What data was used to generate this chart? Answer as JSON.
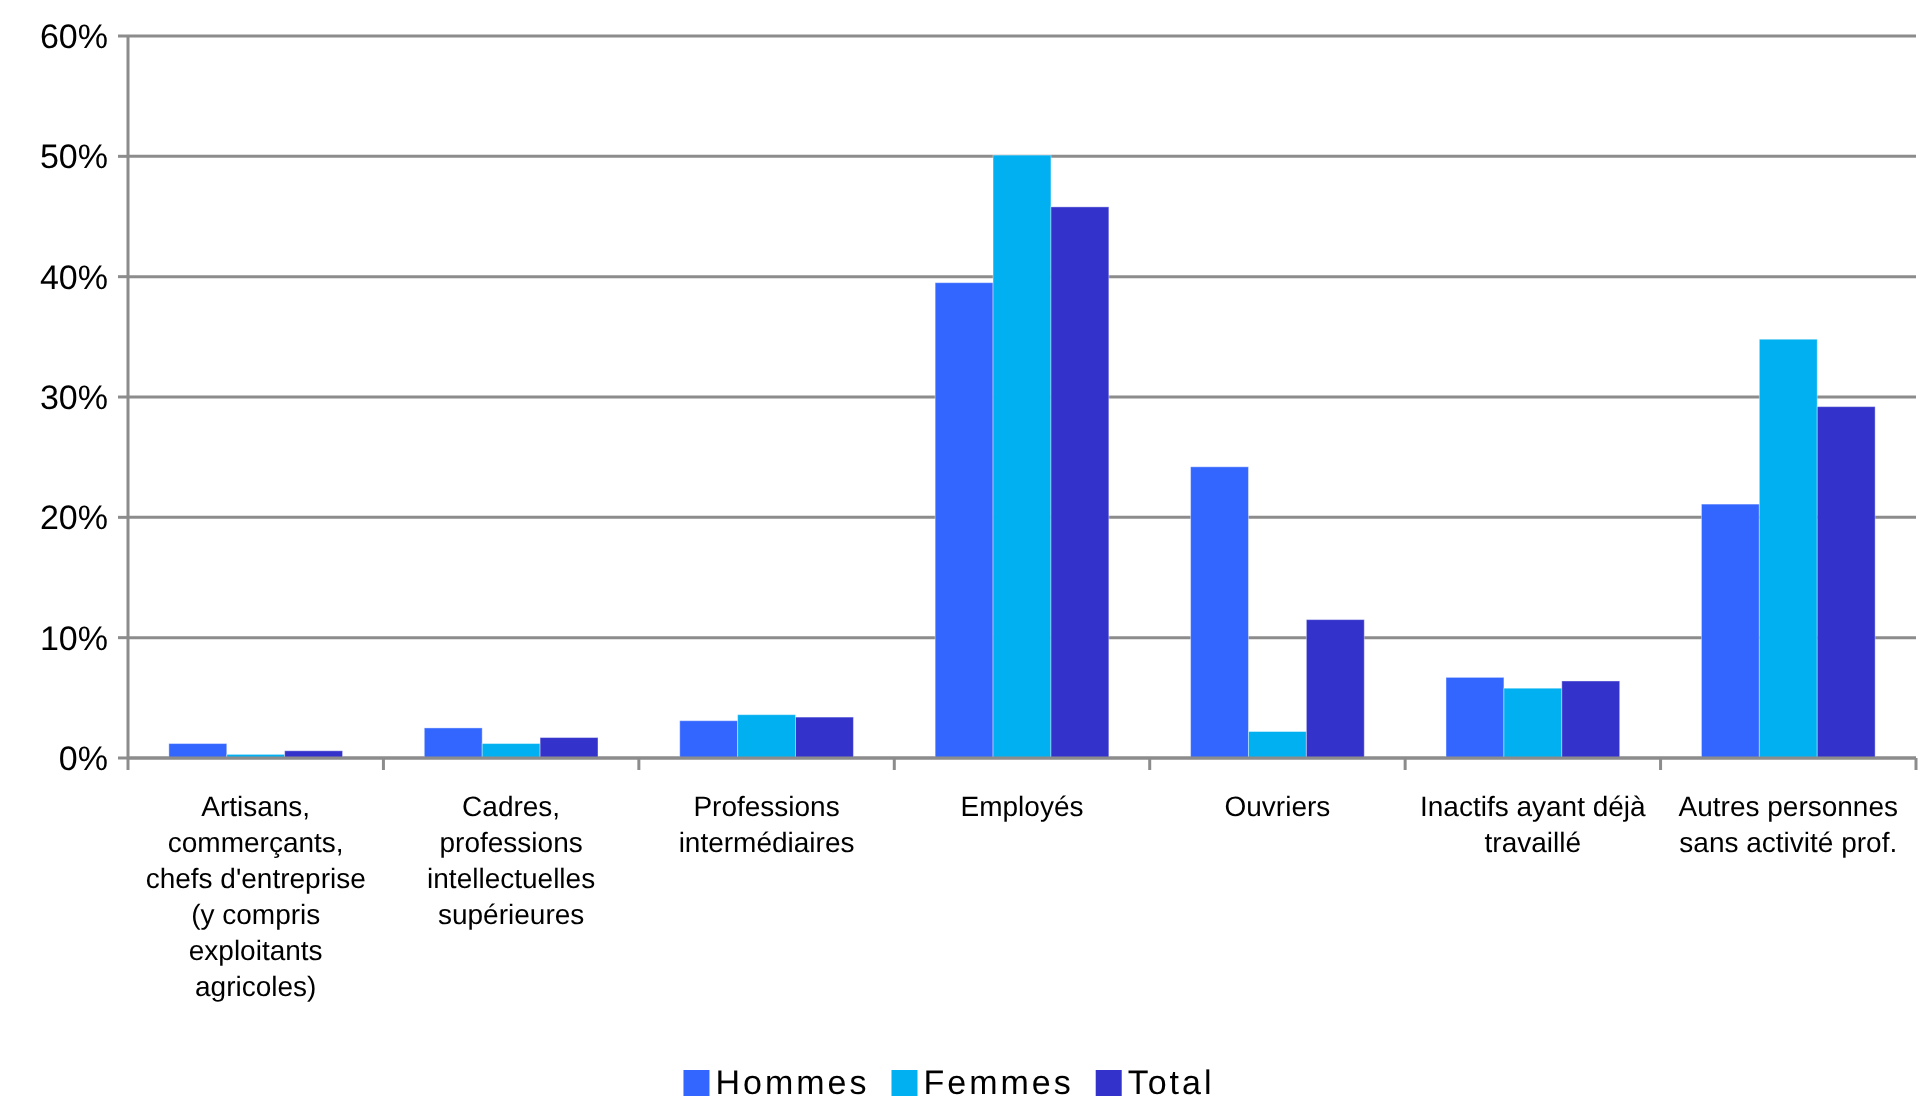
{
  "chart_data": {
    "type": "bar",
    "categories": [
      "Artisans, commerçants, chefs d'entreprise (y compris exploitants agricoles)",
      "Cadres, professions intellectuelles supérieures",
      "Professions intermédiaires",
      "Employés",
      "Ouvriers",
      "Inactifs ayant déjà travaillé",
      "Autres personnes sans activité prof."
    ],
    "series": [
      {
        "name": "Hommes",
        "color": "#3366ff",
        "values": [
          1.2,
          2.5,
          3.1,
          39.5,
          24.2,
          6.7,
          21.1
        ]
      },
      {
        "name": "Femmes",
        "color": "#00b0f0",
        "values": [
          0.3,
          1.2,
          3.6,
          50.1,
          2.2,
          5.8,
          34.8
        ]
      },
      {
        "name": "Total",
        "color": "#3333cc",
        "values": [
          0.6,
          1.7,
          3.4,
          45.8,
          11.5,
          6.4,
          29.2
        ]
      }
    ],
    "ylim": [
      0,
      60
    ],
    "yticks": [
      {
        "value": 0,
        "label": "0%"
      },
      {
        "value": 10,
        "label": "10%"
      },
      {
        "value": 20,
        "label": "20%"
      },
      {
        "value": 30,
        "label": "30%"
      },
      {
        "value": 40,
        "label": "40%"
      },
      {
        "value": 50,
        "label": "50%"
      },
      {
        "value": 60,
        "label": "60%"
      }
    ],
    "grid": "y",
    "legend": "bottom"
  }
}
